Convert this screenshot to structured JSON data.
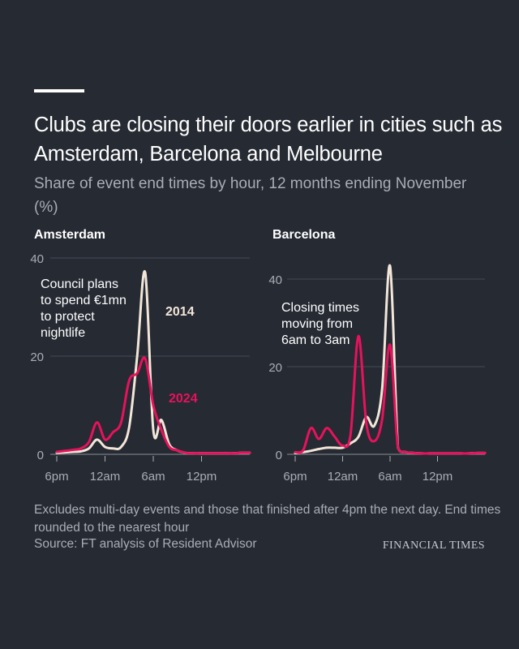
{
  "header": {
    "title": "Clubs are closing their doors earlier in cities such as Amsterdam, Barcelona and Melbourne",
    "subtitle": "Share of event end times by hour, 12 months ending November (%)"
  },
  "footer": {
    "note": "Excludes multi-day events and those that finished after 4pm the next day. End times rounded to the nearest hour",
    "source": "Source: FT analysis of Resident Advisor",
    "brand": "FINANCIAL TIMES"
  },
  "colors": {
    "series_2014": "#f2e6d9",
    "series_2024": "#e8125c",
    "grid": "#474b55",
    "tick": "#a9adb5"
  },
  "chart_data": [
    {
      "type": "line",
      "title": "Amsterdam",
      "x": [
        0,
        1,
        2,
        3,
        4,
        5,
        6,
        7,
        8,
        9,
        10,
        11,
        12,
        13,
        14,
        15,
        16,
        17,
        18,
        19,
        20,
        21,
        22,
        23,
        24
      ],
      "xticks": [
        {
          "x": 0,
          "label": "6pm"
        },
        {
          "x": 6,
          "label": "12am"
        },
        {
          "x": 12,
          "label": "6am"
        },
        {
          "x": 18,
          "label": "12pm"
        }
      ],
      "ylim": [
        0,
        40
      ],
      "yticks": [
        0,
        20,
        40
      ],
      "series": [
        {
          "name": "2014",
          "values": [
            0.3,
            0.4,
            0.5,
            0.6,
            1.2,
            3.0,
            1.5,
            1.2,
            1.5,
            5.5,
            20.0,
            37.0,
            5.0,
            7.0,
            2.0,
            0.8,
            0.3,
            0.2,
            0.2,
            0.2,
            0.2,
            0.2,
            0.2,
            0.3,
            0.3
          ]
        },
        {
          "name": "2024",
          "values": [
            0.5,
            0.7,
            0.9,
            1.2,
            2.5,
            6.5,
            3.0,
            4.5,
            6.5,
            15.0,
            16.5,
            19.5,
            10.0,
            5.0,
            1.5,
            0.8,
            0.3,
            0.2,
            0.2,
            0.2,
            0.2,
            0.2,
            0.2,
            0.3,
            0.3
          ]
        }
      ],
      "annotation": "Council plans to spend €1mn to protect nightlife"
    },
    {
      "type": "line",
      "title": "Barcelona",
      "x": [
        0,
        1,
        2,
        3,
        4,
        5,
        6,
        7,
        8,
        9,
        10,
        11,
        12,
        13,
        14,
        15,
        16,
        17,
        18,
        19,
        20,
        21,
        22,
        23,
        24
      ],
      "xticks": [
        {
          "x": 0,
          "label": "6pm"
        },
        {
          "x": 6,
          "label": "12am"
        },
        {
          "x": 12,
          "label": "6am"
        },
        {
          "x": 18,
          "label": "12pm"
        }
      ],
      "ylim": [
        0,
        40
      ],
      "yticks": [
        0,
        20,
        40
      ],
      "series": [
        {
          "name": "2014",
          "values": [
            0.3,
            0.5,
            0.8,
            1.2,
            1.5,
            1.5,
            1.5,
            2.5,
            4.0,
            8.5,
            6.5,
            15.0,
            43.0,
            1.5,
            0.5,
            0.3,
            0.2,
            0.2,
            0.2,
            0.2,
            0.2,
            0.2,
            0.2,
            0.3,
            0.3
          ]
        },
        {
          "name": "2024",
          "values": [
            0.5,
            0.9,
            6.0,
            3.5,
            6.0,
            4.0,
            2.0,
            4.5,
            27.0,
            7.0,
            3.0,
            8.0,
            25.0,
            1.5,
            0.5,
            0.3,
            0.2,
            0.2,
            0.2,
            0.2,
            0.2,
            0.2,
            0.2,
            0.3,
            0.3
          ]
        }
      ],
      "annotation": "Closing times moving from 6am to 3am"
    }
  ]
}
